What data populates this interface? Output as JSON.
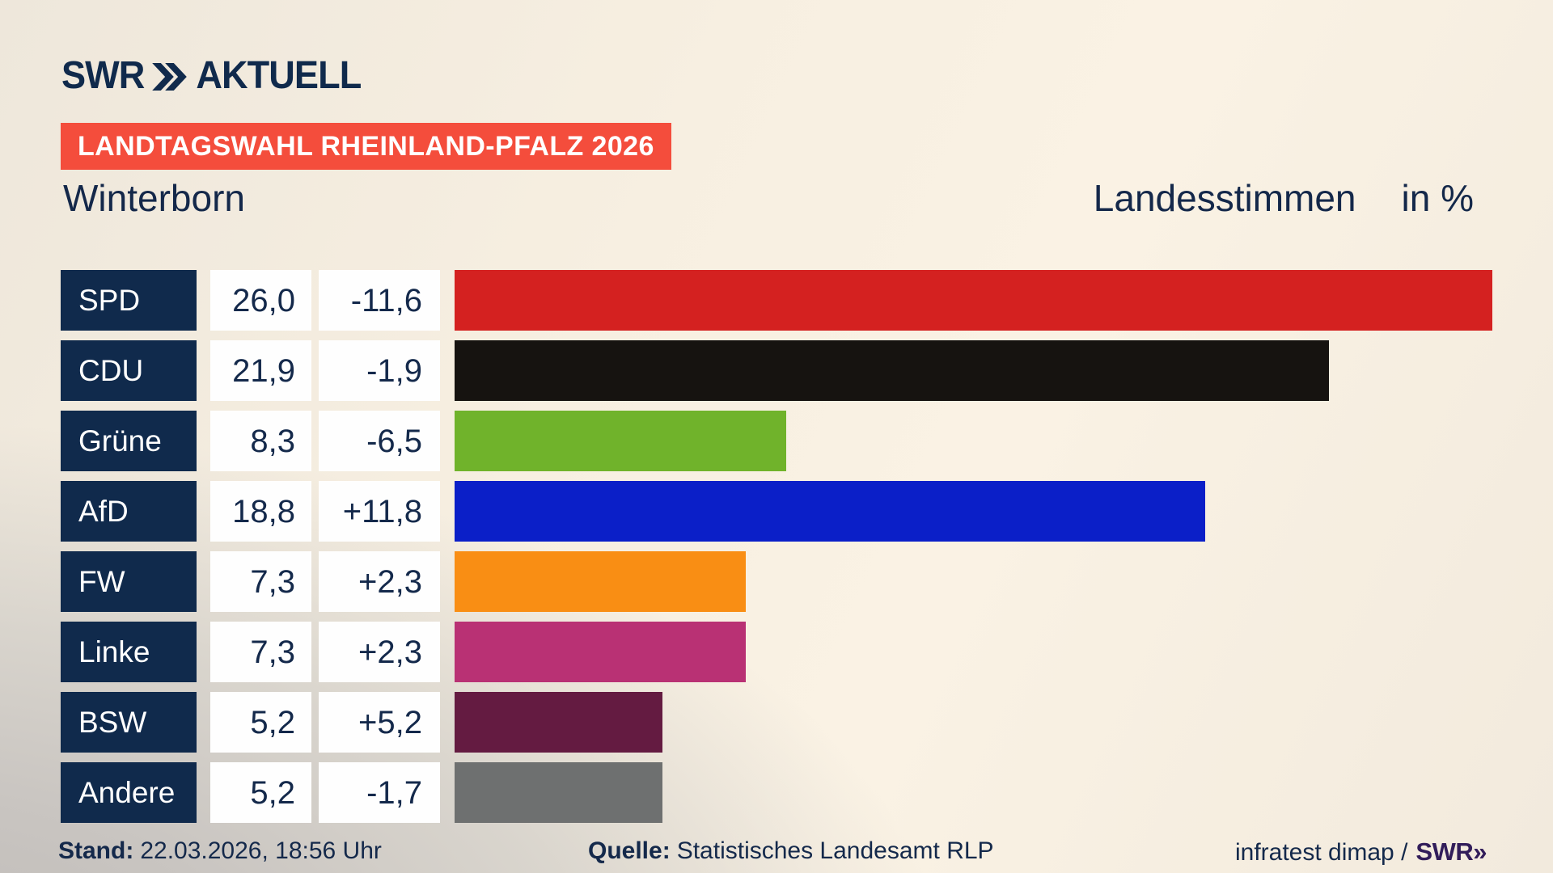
{
  "header": {
    "logo_brand": "SWR",
    "logo_suffix": "AKTUELL",
    "badge": "LANDTAGSWAHL RHEINLAND-PFALZ 2026",
    "region": "Winterborn",
    "measure": "Landesstimmen",
    "unit": "in %"
  },
  "chart_data": {
    "type": "bar",
    "orientation": "horizontal",
    "title": "Landtagswahl Rheinland-Pfalz 2026 — Winterborn, Landesstimmen in %",
    "categories": [
      "SPD",
      "CDU",
      "Grüne",
      "AfD",
      "FW",
      "Linke",
      "BSW",
      "Andere"
    ],
    "values": [
      26.0,
      21.9,
      8.3,
      18.8,
      7.3,
      7.3,
      5.2,
      5.2
    ],
    "value_labels": [
      "26,0",
      "21,9",
      "8,3",
      "18,8",
      "7,3",
      "7,3",
      "5,2",
      "5,2"
    ],
    "changes": [
      "-11,6",
      "-1,9",
      "-6,5",
      "+11,8",
      "+2,3",
      "+2,3",
      "+5,2",
      "-1,7"
    ],
    "colors": [
      "#d42120",
      "#161310",
      "#70b32b",
      "#0b1fc8",
      "#f98e14",
      "#b93174",
      "#641b41",
      "#6e7070"
    ],
    "xlim": [
      0,
      26.0
    ],
    "grid": false,
    "legend": false
  },
  "footer": {
    "stand_label": "Stand:",
    "stand_value": "22.03.2026, 18:56 Uhr",
    "quelle_label": "Quelle:",
    "quelle_value": "Statistisches Landesamt RLP",
    "credit": "infratest dimap /",
    "credit_logo": "SWR»"
  },
  "theme": {
    "navy": "#102a4c",
    "text_navy": "#14294b",
    "badge_red": "#f44d3c",
    "box_white": "#fefefe",
    "bg_cream": "#f7efe1",
    "bg_gray": "#c9c5c1",
    "swr_purple": "#321d5a"
  }
}
